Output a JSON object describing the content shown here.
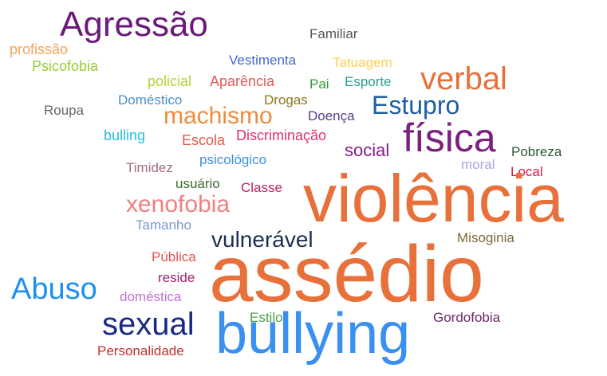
{
  "chart_data": {
    "type": "wordcloud",
    "words": [
      {
        "text": "Agressão",
        "color": "#6b1a7a"
      },
      {
        "text": "profissão",
        "color": "#f5a35a"
      },
      {
        "text": "Psicofobia",
        "color": "#9acd32"
      },
      {
        "text": "Familiar",
        "color": "#555555"
      },
      {
        "text": "Vestimenta",
        "color": "#4169c9"
      },
      {
        "text": "Tatuagem",
        "color": "#ffd050"
      },
      {
        "text": "verbal",
        "color": "#e8703a"
      },
      {
        "text": "policial",
        "color": "#b5d334"
      },
      {
        "text": "Aparência",
        "color": "#e05a5a"
      },
      {
        "text": "Pai",
        "color": "#2ca02c"
      },
      {
        "text": "Esporte",
        "color": "#2e9e8e"
      },
      {
        "text": "Roupa",
        "color": "#666666"
      },
      {
        "text": "Doméstico",
        "color": "#4a90c8"
      },
      {
        "text": "Drogas",
        "color": "#8b7a1a"
      },
      {
        "text": "Estupro",
        "color": "#1f5fa0"
      },
      {
        "text": "machismo",
        "color": "#f08c3c"
      },
      {
        "text": "Doença",
        "color": "#5a3d8a"
      },
      {
        "text": "física",
        "color": "#7b2080"
      },
      {
        "text": "bulling",
        "color": "#20c0e0"
      },
      {
        "text": "Discriminação",
        "color": "#e0306a"
      },
      {
        "text": "Escola",
        "color": "#e05a4a"
      },
      {
        "text": "social",
        "color": "#8a1a8a"
      },
      {
        "text": "Pobreza",
        "color": "#2a5a3a"
      },
      {
        "text": "psicológico",
        "color": "#3a90e0"
      },
      {
        "text": "Timidez",
        "color": "#a07080"
      },
      {
        "text": "moral",
        "color": "#b0a0e0"
      },
      {
        "text": "Local",
        "color": "#d02050"
      },
      {
        "text": "violência",
        "color": "#e8703a"
      },
      {
        "text": "usuário",
        "color": "#3a6a2a"
      },
      {
        "text": "Classe",
        "color": "#c02060"
      },
      {
        "text": "xenofobia",
        "color": "#f08080"
      },
      {
        "text": "Tamanho",
        "color": "#7a9ad0"
      },
      {
        "text": "vulnerável",
        "color": "#1a3050"
      },
      {
        "text": "Misoginia",
        "color": "#7a6a3a"
      },
      {
        "text": "Pública",
        "color": "#e85050"
      },
      {
        "text": "assédio",
        "color": "#e8703a"
      },
      {
        "text": "reside",
        "color": "#a02070"
      },
      {
        "text": "Abuso",
        "color": "#2090f0"
      },
      {
        "text": "doméstica",
        "color": "#c070d0"
      },
      {
        "text": "Estilo",
        "color": "#4aa04a"
      },
      {
        "text": "Gordofobia",
        "color": "#6a2a6a"
      },
      {
        "text": "sexual",
        "color": "#1a2a80"
      },
      {
        "text": "bullying",
        "color": "#3a90f0"
      },
      {
        "text": "Personalidade",
        "color": "#c03030"
      }
    ]
  }
}
